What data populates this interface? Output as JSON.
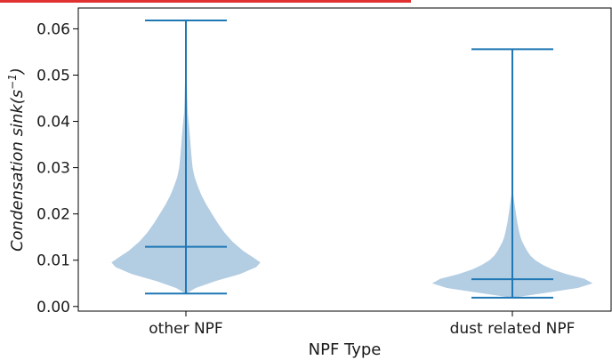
{
  "chart_data": {
    "type": "violin",
    "xlabel": "NPF Type",
    "ylabel_main": "Condensation sink",
    "ylabel_unit_prefix": "(s",
    "ylabel_unit_exp": "−1",
    "ylabel_unit_suffix": ")",
    "ylim": [
      -0.001,
      0.0645
    ],
    "yticks": [
      0.0,
      0.01,
      0.02,
      0.03,
      0.04,
      0.05,
      0.06
    ],
    "ytick_labels": [
      "0.00",
      "0.01",
      "0.02",
      "0.03",
      "0.04",
      "0.05",
      "0.06"
    ],
    "categories": [
      "other NPF",
      "dust related NPF"
    ],
    "grid": false,
    "colors": {
      "body": "#b3cde3",
      "line": "#1f77b4",
      "accent_bar": "#e03030"
    },
    "violins": [
      {
        "name": "other NPF",
        "min": 0.0028,
        "max": 0.0618,
        "median": 0.0129,
        "density": [
          [
            0.0028,
            0.004
          ],
          [
            0.004,
            0.12
          ],
          [
            0.0055,
            0.36
          ],
          [
            0.007,
            0.66
          ],
          [
            0.0085,
            0.86
          ],
          [
            0.0095,
            0.91
          ],
          [
            0.0105,
            0.83
          ],
          [
            0.012,
            0.7
          ],
          [
            0.014,
            0.57
          ],
          [
            0.016,
            0.47
          ],
          [
            0.018,
            0.39
          ],
          [
            0.02,
            0.32
          ],
          [
            0.022,
            0.25
          ],
          [
            0.024,
            0.19
          ],
          [
            0.026,
            0.145
          ],
          [
            0.028,
            0.105
          ],
          [
            0.03,
            0.082
          ],
          [
            0.033,
            0.065
          ],
          [
            0.036,
            0.052
          ],
          [
            0.039,
            0.038
          ],
          [
            0.042,
            0.022
          ],
          [
            0.045,
            0.016
          ],
          [
            0.048,
            0.012
          ],
          [
            0.051,
            0.006
          ],
          [
            0.054,
            0.003
          ],
          [
            0.058,
            0.0015
          ],
          [
            0.0618,
            0.0008
          ]
        ]
      },
      {
        "name": "dust related NPF",
        "min": 0.0019,
        "max": 0.0556,
        "median": 0.0059,
        "density": [
          [
            0.0019,
            0.01
          ],
          [
            0.003,
            0.42
          ],
          [
            0.004,
            0.8
          ],
          [
            0.005,
            0.98
          ],
          [
            0.006,
            0.88
          ],
          [
            0.007,
            0.66
          ],
          [
            0.008,
            0.49
          ],
          [
            0.009,
            0.37
          ],
          [
            0.01,
            0.28
          ],
          [
            0.011,
            0.22
          ],
          [
            0.012,
            0.18
          ],
          [
            0.013,
            0.15
          ],
          [
            0.014,
            0.12
          ],
          [
            0.015,
            0.1
          ],
          [
            0.016,
            0.085
          ],
          [
            0.018,
            0.062
          ],
          [
            0.02,
            0.045
          ],
          [
            0.022,
            0.028
          ],
          [
            0.024,
            0.012
          ],
          [
            0.027,
            0.004
          ],
          [
            0.03,
            0.002
          ],
          [
            0.04,
            0.0015
          ],
          [
            0.0556,
            0.001
          ]
        ]
      }
    ]
  }
}
